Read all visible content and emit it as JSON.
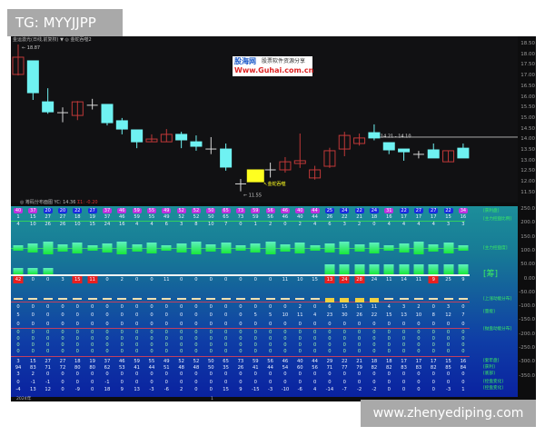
{
  "watermarks": {
    "top": "TG: MYYJJPP",
    "bottom": "www.zhenyediping.com",
    "logo": "股海网 股票软件资源分享 Www.Guhai.com.cn"
  },
  "header": {
    "title": "金运激光(日线,前复权) ▼ ◎ 金蛇吞噬2",
    "sub_title": "◎ 筹码分布面图 YC: 14.36",
    "sub_value": "Σ1: -0.20"
  },
  "colors": {
    "up": "#c03838",
    "down": "#6ff2f2",
    "signal": "#ffff20",
    "cross": "#d8d8d8",
    "panel_top": "#1c8e9a",
    "panel_bottom": "#0a22a0",
    "label_green": "#3cf060"
  },
  "price_chart": {
    "type": "candlestick",
    "ylim": [
      11.3,
      18.7
    ],
    "y_ticks": [
      "18.50",
      "18.00",
      "17.50",
      "17.00",
      "16.50",
      "16.00",
      "15.50",
      "15.00",
      "14.50",
      "14.00",
      "13.50",
      "13.00",
      "12.50",
      "12.00",
      "11.50"
    ],
    "annotations": {
      "high": "18.87",
      "low": "11.55",
      "range": "14.21 - 14.10",
      "signal": "金蛇吞噬",
      "ref_line": 14.1
    },
    "candles": [
      [
        17.05,
        17.86,
        18.87,
        17.0,
        "up"
      ],
      [
        17.69,
        16.19,
        17.7,
        15.85,
        "down"
      ],
      [
        15.76,
        15.29,
        16.4,
        15.2,
        "down"
      ],
      [
        15.25,
        15.22,
        15.5,
        14.8,
        "cross"
      ],
      [
        15.12,
        15.76,
        15.8,
        14.9,
        "up"
      ],
      [
        15.6,
        15.6,
        15.9,
        15.4,
        "cross"
      ],
      [
        15.64,
        14.78,
        15.64,
        14.65,
        "down"
      ],
      [
        14.87,
        14.48,
        15.0,
        14.23,
        "down"
      ],
      [
        14.44,
        13.88,
        14.44,
        13.58,
        "down"
      ],
      [
        13.88,
        14.01,
        14.23,
        13.88,
        "up"
      ],
      [
        13.88,
        14.23,
        14.48,
        13.88,
        "up"
      ],
      [
        14.23,
        13.97,
        14.35,
        13.58,
        "down"
      ],
      [
        13.88,
        13.67,
        14.18,
        13.46,
        "down"
      ],
      [
        13.54,
        13.54,
        14.1,
        13.3,
        "cross"
      ],
      [
        13.54,
        12.69,
        13.8,
        12.52,
        "down"
      ],
      [
        11.9,
        11.88,
        12.13,
        11.55,
        "cross"
      ],
      [
        12.0,
        12.56,
        12.56,
        12.0,
        "signal"
      ],
      [
        12.56,
        12.56,
        12.9,
        12.2,
        "cross"
      ],
      [
        12.56,
        12.94,
        13.16,
        12.43,
        "up"
      ],
      [
        12.86,
        12.99,
        14.27,
        12.65,
        "up"
      ],
      [
        12.18,
        12.56,
        12.75,
        12.1,
        "up"
      ],
      [
        12.73,
        13.46,
        13.6,
        12.65,
        "up"
      ],
      [
        13.54,
        14.18,
        14.35,
        13.2,
        "up"
      ],
      [
        13.8,
        14.06,
        14.27,
        13.7,
        "up"
      ],
      [
        14.31,
        14.06,
        14.7,
        13.95,
        "down"
      ],
      [
        13.84,
        13.5,
        13.84,
        13.3,
        "down"
      ],
      [
        13.54,
        13.41,
        13.54,
        12.99,
        "down"
      ],
      [
        13.29,
        13.29,
        13.45,
        13.1,
        "cross"
      ],
      [
        13.5,
        13.12,
        13.8,
        13.12,
        "down"
      ],
      [
        12.94,
        13.46,
        13.46,
        12.94,
        "up"
      ],
      [
        13.58,
        13.12,
        13.8,
        13.12,
        "down"
      ]
    ]
  },
  "indicator_panel": {
    "y_ticks": [
      "250.0",
      "200.0",
      "150.0",
      "100.0",
      "50.00",
      "0.00",
      "-50.00",
      "-100.0",
      "-150.0",
      "-200.0",
      "-250.0",
      "-300.0",
      "-350.0"
    ],
    "badges": [
      40,
      37,
      20,
      20,
      22,
      27,
      37,
      46,
      59,
      55,
      49,
      52,
      52,
      50,
      65,
      73,
      59,
      56,
      46,
      40,
      44,
      25,
      24,
      22,
      24,
      31,
      22,
      27,
      27,
      22,
      34
    ],
    "badge_colors": [
      "m",
      "m",
      "b",
      "b",
      "b",
      "b",
      "m",
      "m",
      "m",
      "m",
      "m",
      "m",
      "m",
      "m",
      "m",
      "m",
      "m",
      "m",
      "m",
      "m",
      "m",
      "b",
      "b",
      "b",
      "b",
      "m",
      "b",
      "b",
      "b",
      "b",
      "m"
    ],
    "row_a": [
      1,
      15,
      27,
      27,
      18,
      19,
      37,
      46,
      59,
      55,
      49,
      52,
      52,
      50,
      65,
      73,
      59,
      56,
      46,
      40,
      44,
      26,
      22,
      21,
      18,
      16,
      17,
      17,
      17,
      15,
      16
    ],
    "row_b": [
      4,
      10,
      26,
      26,
      10,
      15,
      24,
      16,
      4,
      4,
      6,
      3,
      8,
      10,
      7,
      0,
      1,
      2,
      0,
      2,
      4,
      6,
      3,
      2,
      0,
      4,
      4,
      4,
      4,
      3,
      3
    ],
    "mid_values": [
      42,
      0,
      0,
      3,
      15,
      11,
      0,
      2,
      0,
      0,
      11,
      0,
      0,
      0,
      0,
      0,
      0,
      0,
      11,
      10,
      15,
      13,
      24,
      28,
      24,
      11,
      14,
      11,
      9,
      25,
      9
    ],
    "mid_red": [
      0,
      4,
      5,
      21,
      22,
      23,
      28
    ],
    "row_c": [
      0,
      0,
      0,
      0,
      0,
      0,
      0,
      0,
      0,
      0,
      0,
      0,
      0,
      0,
      0,
      0,
      0,
      0,
      0,
      2,
      0,
      6,
      15,
      13,
      11,
      4,
      3,
      2,
      0,
      3,
      0
    ],
    "row_d": [
      5,
      0,
      0,
      0,
      0,
      0,
      0,
      0,
      0,
      0,
      0,
      0,
      0,
      0,
      0,
      0,
      5,
      5,
      10,
      11,
      4,
      23,
      30,
      26,
      22,
      15,
      13,
      10,
      8,
      12,
      7
    ],
    "row_e": [
      0,
      0,
      0,
      0,
      0,
      0,
      0,
      0,
      0,
      0,
      0,
      0,
      0,
      0,
      0,
      0,
      0,
      0,
      0,
      0,
      0,
      0,
      0,
      0,
      0,
      0,
      0,
      0,
      0,
      0,
      0
    ],
    "stack_value": "0",
    "bottom_1": [
      3,
      15,
      27,
      27,
      18,
      19,
      37,
      46,
      59,
      55,
      49,
      52,
      52,
      50,
      65,
      73,
      59,
      56,
      46,
      40,
      44,
      29,
      22,
      21,
      18,
      18,
      17,
      17,
      17,
      15,
      16
    ],
    "bottom_2": [
      94,
      83,
      71,
      72,
      80,
      80,
      62,
      53,
      41,
      44,
      51,
      48,
      48,
      50,
      35,
      26,
      41,
      44,
      54,
      60,
      56,
      71,
      77,
      79,
      82,
      82,
      83,
      83,
      82,
      85,
      84
    ],
    "bottom_3": [
      3,
      2,
      0,
      0,
      0,
      0,
      0,
      0,
      0,
      0,
      0,
      0,
      0,
      0,
      0,
      0,
      0,
      0,
      0,
      0,
      0,
      0,
      0,
      0,
      0,
      0,
      0,
      0,
      0,
      0,
      0
    ],
    "bottom_4": [
      0,
      -1,
      -1,
      0,
      0,
      0,
      -1,
      0,
      0,
      0,
      0,
      0,
      0,
      0,
      0,
      0,
      0,
      0,
      0,
      0,
      0,
      0,
      0,
      0,
      0,
      0,
      0,
      0,
      0,
      0,
      0
    ],
    "bottom_5": [
      -4,
      13,
      12,
      0,
      -9,
      0,
      18,
      9,
      13,
      -3,
      -6,
      2,
      0,
      0,
      15,
      9,
      -15,
      -3,
      -10,
      -6,
      4,
      -14,
      -7,
      -2,
      -2,
      0,
      0,
      0,
      0,
      -3,
      1
    ],
    "right_labels": [
      "[获利盘]",
      "[主力控盘比例]",
      "[主力控盘度]",
      "[筹]",
      "[上涨动能分布]",
      "[量能]",
      "[抛盘动能分布]",
      "[套牢盘]",
      "[获利]",
      "[底部]",
      "[控盘变化]",
      "[控盘变化]"
    ],
    "date_labels": [
      "2024年",
      "1"
    ]
  }
}
